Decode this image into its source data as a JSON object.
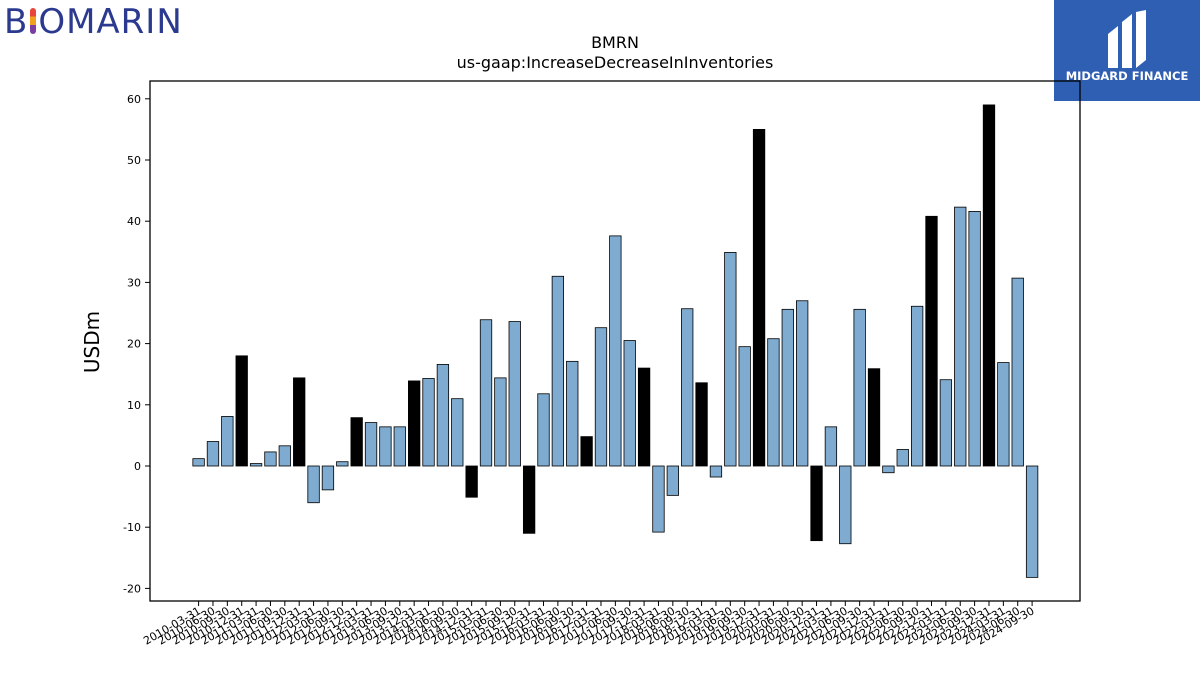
{
  "logos": {
    "left_text_before": "B",
    "left_text_after": "OMARIN",
    "right_text": "MIDGARD FINANCE"
  },
  "colors": {
    "bar_normal": "#7eabcf",
    "bar_highlight": "#000000",
    "edge": "#000000"
  },
  "chart_data": {
    "type": "bar",
    "title": "BMRN",
    "subtitle": "us-gaap:IncreaseDecreaseInInventories",
    "ylabel": "USDm",
    "xlabel": "",
    "ylim": [
      -22,
      63
    ],
    "yticks": [
      -20,
      -10,
      0,
      10,
      20,
      30,
      40,
      50,
      60
    ],
    "categories": [
      "2010-03-31",
      "2010-06-30",
      "2010-09-30",
      "2010-12-31",
      "2011-03-31",
      "2011-06-30",
      "2011-09-30",
      "2011-12-31",
      "2012-03-31",
      "2012-06-30",
      "2012-09-30",
      "2012-12-31",
      "2013-03-31",
      "2013-06-30",
      "2013-09-30",
      "2013-12-31",
      "2014-03-31",
      "2014-06-30",
      "2014-09-30",
      "2014-12-31",
      "2015-03-31",
      "2015-06-30",
      "2015-09-30",
      "2015-12-31",
      "2016-03-31",
      "2016-06-30",
      "2016-09-30",
      "2016-12-31",
      "2017-03-31",
      "2017-06-30",
      "2017-09-30",
      "2017-12-31",
      "2018-03-31",
      "2018-06-30",
      "2018-09-30",
      "2018-12-31",
      "2019-03-31",
      "2019-06-30",
      "2019-09-30",
      "2019-12-31",
      "2020-03-31",
      "2020-06-30",
      "2020-09-30",
      "2020-12-31",
      "2021-03-31",
      "2021-06-30",
      "2021-09-30",
      "2021-12-31",
      "2022-03-31",
      "2022-06-30",
      "2022-09-30",
      "2022-12-31",
      "2023-03-31",
      "2023-06-30",
      "2023-09-30",
      "2023-12-31",
      "2024-03-31",
      "2024-06-30",
      "2024-09-30"
    ],
    "values": [
      1.2,
      4.0,
      8.1,
      18.0,
      0.4,
      2.3,
      3.3,
      14.4,
      -6.0,
      -3.9,
      0.7,
      7.9,
      7.1,
      6.4,
      6.4,
      13.9,
      14.3,
      16.6,
      11.0,
      -5.1,
      23.9,
      14.4,
      23.6,
      -11.0,
      11.8,
      31.0,
      17.1,
      4.8,
      22.6,
      37.6,
      20.5,
      16.0,
      -10.8,
      -4.8,
      25.7,
      13.6,
      -1.8,
      34.9,
      19.5,
      55.0,
      20.8,
      25.6,
      27.0,
      -12.2,
      6.4,
      -12.7,
      25.6,
      15.9,
      -1.1,
      2.7,
      26.1,
      40.8,
      14.1,
      42.3,
      41.6,
      59.0,
      16.9,
      30.7,
      -18.2
    ],
    "highlight": [
      false,
      false,
      false,
      true,
      false,
      false,
      false,
      true,
      false,
      false,
      false,
      true,
      false,
      false,
      false,
      true,
      false,
      false,
      false,
      true,
      false,
      false,
      false,
      true,
      false,
      false,
      false,
      true,
      false,
      false,
      false,
      true,
      false,
      false,
      false,
      true,
      false,
      false,
      false,
      true,
      false,
      false,
      false,
      true,
      false,
      false,
      false,
      true,
      false,
      false,
      false,
      true,
      false,
      false,
      false,
      true,
      false,
      false,
      false
    ],
    "grid": false,
    "legend": "none"
  }
}
